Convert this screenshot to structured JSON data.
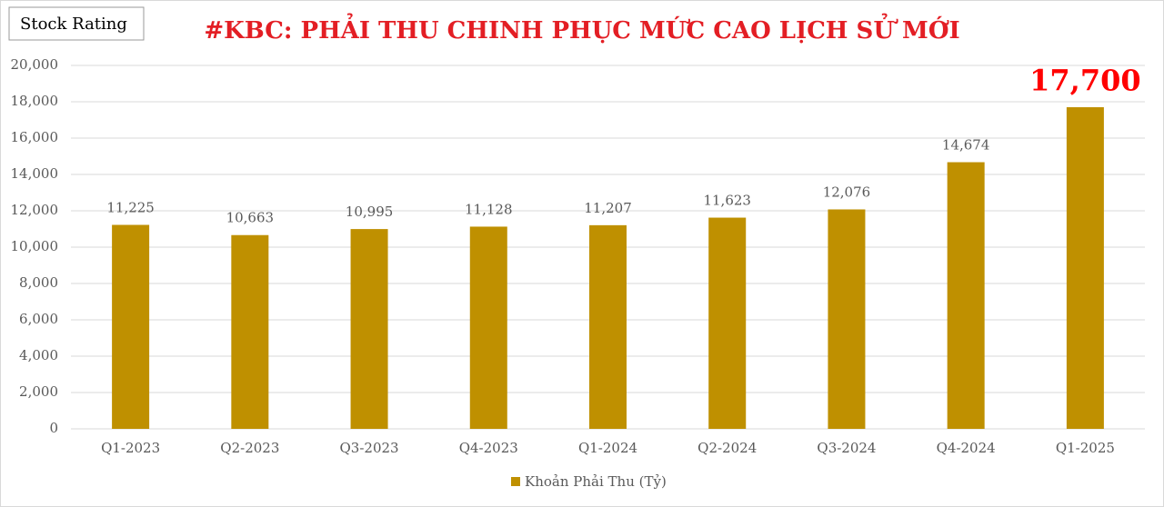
{
  "chart_data": {
    "type": "bar",
    "title": "#KBC: PHẢI THU CHINH PHỤC MỨC CAO LỊCH SỬ MỚI",
    "badge": "Stock Rating",
    "categories": [
      "Q1-2023",
      "Q2-2023",
      "Q3-2023",
      "Q4-2023",
      "Q1-2024",
      "Q2-2024",
      "Q3-2024",
      "Q4-2024",
      "Q1-2025"
    ],
    "series": [
      {
        "name": "Khoản Phải Thu (Tỷ)",
        "color": "#bf9000",
        "values": [
          11225,
          10663,
          10995,
          11128,
          11207,
          11623,
          12076,
          14674,
          17700
        ],
        "value_labels": [
          "11,225",
          "10,663",
          "10,995",
          "11,128",
          "11,207",
          "11,623",
          "12,076",
          "14,674",
          "17,700"
        ]
      }
    ],
    "ylim": [
      0,
      20000
    ],
    "yticks": [
      0,
      {
        "value": 2000,
        "label": "2,000"
      },
      {
        "value": 4000,
        "label": "4,000"
      },
      {
        "value": 6000,
        "label": "6,000"
      },
      {
        "value": 8000,
        "label": "8,000"
      },
      {
        "value": 10000,
        "label": "10,000"
      },
      {
        "value": 12000,
        "label": "12,000"
      },
      {
        "value": 14000,
        "label": "14,000"
      },
      {
        "value": 16000,
        "label": "16,000"
      },
      {
        "value": 18000,
        "label": "18,000"
      },
      {
        "value": 20000,
        "label": "20,000"
      }
    ],
    "grid": true,
    "legend": "bottom"
  }
}
